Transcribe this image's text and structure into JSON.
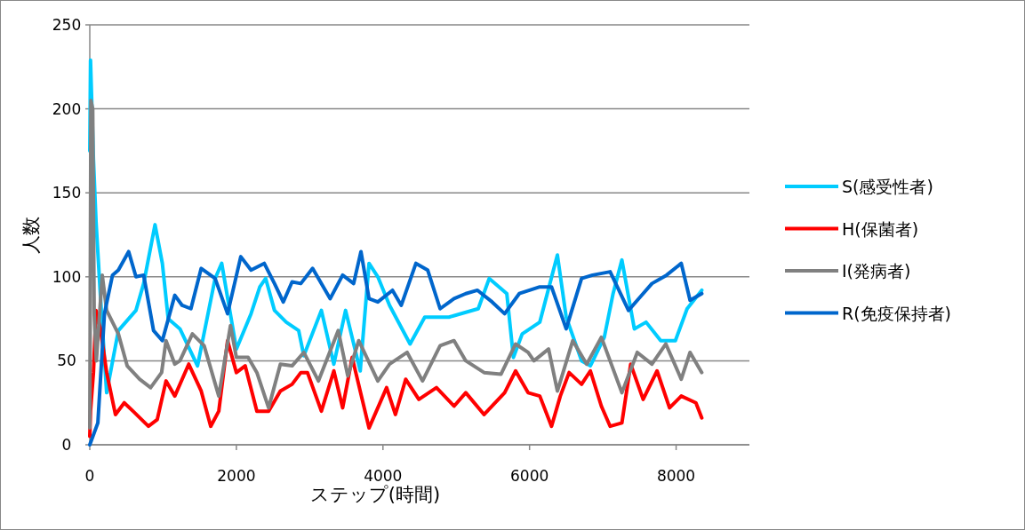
{
  "chart_data": {
    "type": "line",
    "xlabel": "ステップ(時間)",
    "ylabel": "人数",
    "xlim": [
      0,
      9000
    ],
    "xticks": [
      0,
      2000,
      4000,
      6000,
      8000
    ],
    "ylim": [
      0,
      250
    ],
    "yticks": [
      0,
      50,
      100,
      150,
      200,
      250
    ],
    "grid": "y",
    "legend": "right",
    "marker": "none",
    "line_style": "solid",
    "series": [
      {
        "name": "S(感受性者)",
        "color": "#00ccff",
        "x": [
          0,
          10,
          50,
          85,
          150,
          230,
          390,
          630,
          735,
          890,
          990,
          1070,
          1230,
          1470,
          1710,
          1800,
          2000,
          2200,
          2320,
          2400,
          2520,
          2680,
          2850,
          2920,
          3160,
          3330,
          3490,
          3690,
          3810,
          3930,
          4090,
          4370,
          4570,
          4900,
          5300,
          5450,
          5690,
          5780,
          5900,
          6140,
          6380,
          6500,
          6710,
          6830,
          7020,
          7140,
          7260,
          7430,
          7590,
          7790,
          7990,
          8150,
          8350
        ],
        "values": [
          175,
          229,
          170,
          133,
          85,
          31,
          68,
          80,
          96,
          131,
          108,
          75,
          69,
          47,
          99,
          108,
          57,
          78,
          94,
          99,
          80,
          73,
          68,
          53,
          80,
          48,
          80,
          44,
          108,
          100,
          83,
          60,
          76,
          76,
          81,
          99,
          90,
          52,
          66,
          73,
          113,
          76,
          50,
          47,
          64,
          90,
          110,
          69,
          73,
          62,
          62,
          81,
          92
        ]
      },
      {
        "name": "H(保菌者)",
        "color": "#ff0000",
        "x": [
          0,
          10,
          50,
          85,
          145,
          230,
          350,
          470,
          590,
          800,
          920,
          1040,
          1160,
          1350,
          1520,
          1650,
          1760,
          1880,
          2000,
          2120,
          2280,
          2440,
          2600,
          2760,
          2880,
          2970,
          3160,
          3330,
          3450,
          3580,
          3810,
          4050,
          4170,
          4310,
          4490,
          4730,
          4970,
          5130,
          5380,
          5660,
          5810,
          5980,
          6140,
          6300,
          6420,
          6540,
          6710,
          6830,
          6980,
          7100,
          7260,
          7380,
          7550,
          7740,
          7910,
          8070,
          8270,
          8350
        ],
        "values": [
          5,
          20,
          43,
          80,
          69,
          43,
          18,
          25,
          20,
          11,
          15,
          38,
          29,
          48,
          32,
          11,
          20,
          62,
          43,
          47,
          20,
          20,
          32,
          36,
          43,
          43,
          20,
          44,
          22,
          52,
          10,
          34,
          18,
          39,
          27,
          34,
          23,
          31,
          18,
          31,
          44,
          31,
          29,
          11,
          29,
          43,
          36,
          44,
          23,
          11,
          13,
          48,
          27,
          44,
          22,
          29,
          25,
          16
        ]
      },
      {
        "name": "I(発病者)",
        "color": "#808080",
        "x": [
          0,
          15,
          40,
          60,
          90,
          170,
          230,
          390,
          510,
          680,
          830,
          980,
          1040,
          1160,
          1230,
          1400,
          1560,
          1760,
          1920,
          2000,
          2160,
          2280,
          2440,
          2600,
          2760,
          2920,
          3120,
          3390,
          3520,
          3670,
          3930,
          4090,
          4330,
          4540,
          4780,
          4970,
          5130,
          5380,
          5610,
          5810,
          5980,
          6060,
          6260,
          6380,
          6590,
          6780,
          6980,
          7260,
          7470,
          7670,
          7860,
          8070,
          8190,
          8350
        ],
        "values": [
          10,
          205,
          200,
          78,
          50,
          101,
          80,
          66,
          47,
          39,
          34,
          43,
          62,
          48,
          50,
          66,
          59,
          29,
          71,
          52,
          52,
          43,
          22,
          48,
          47,
          55,
          38,
          68,
          41,
          62,
          38,
          48,
          55,
          38,
          59,
          62,
          50,
          43,
          42,
          60,
          55,
          50,
          57,
          32,
          62,
          48,
          64,
          31,
          55,
          48,
          60,
          39,
          55,
          43
        ]
      },
      {
        "name": "R(免疫保持者)",
        "color": "#0066cc",
        "x": [
          0,
          110,
          200,
          310,
          390,
          530,
          630,
          735,
          870,
          990,
          1160,
          1260,
          1380,
          1520,
          1710,
          1880,
          2060,
          2200,
          2380,
          2520,
          2640,
          2760,
          2880,
          3040,
          3280,
          3450,
          3600,
          3700,
          3810,
          3930,
          4130,
          4250,
          4450,
          4610,
          4780,
          4970,
          5130,
          5290,
          5490,
          5660,
          5860,
          6140,
          6300,
          6500,
          6710,
          6860,
          7100,
          7350,
          7510,
          7670,
          7870,
          8070,
          8190,
          8350
        ],
        "values": [
          0,
          13,
          78,
          101,
          104,
          115,
          100,
          101,
          68,
          62,
          89,
          83,
          81,
          105,
          99,
          78,
          112,
          104,
          108,
          96,
          85,
          97,
          96,
          105,
          87,
          101,
          96,
          115,
          87,
          85,
          92,
          83,
          108,
          104,
          81,
          87,
          90,
          92,
          85,
          78,
          90,
          94,
          94,
          69,
          99,
          101,
          103,
          80,
          88,
          96,
          101,
          108,
          86,
          90
        ]
      }
    ]
  }
}
